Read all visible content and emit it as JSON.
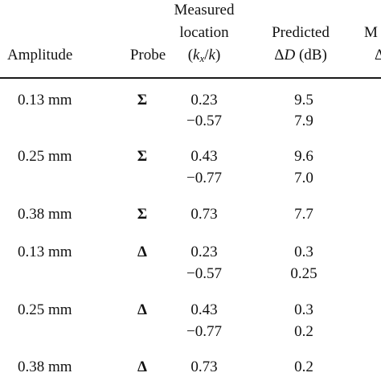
{
  "table": {
    "headers": {
      "amplitude": "Amplitude",
      "probe": "Probe",
      "location_line1": "Measured",
      "location_line2": "location",
      "location_line3": "(kx/k)",
      "predicted_line1": "Predicted",
      "predicted_line2": "ΔD (dB)",
      "measured_partial_line1": "M",
      "measured_partial_line2": "Δ"
    },
    "rows": [
      {
        "amplitude": "0.13 mm",
        "probe": "Σ",
        "location": "0.23",
        "predicted": "9.5"
      },
      {
        "amplitude": "",
        "probe": "",
        "location": "−0.57",
        "predicted": "7.9"
      },
      {
        "amplitude": "0.25 mm",
        "probe": "Σ",
        "location": "0.43",
        "predicted": "9.6"
      },
      {
        "amplitude": "",
        "probe": "",
        "location": "−0.77",
        "predicted": "7.0"
      },
      {
        "amplitude": "0.38 mm",
        "probe": "Σ",
        "location": "0.73",
        "predicted": "7.7"
      },
      {
        "amplitude": "0.13 mm",
        "probe": "Δ",
        "location": "0.23",
        "predicted": "0.3"
      },
      {
        "amplitude": "",
        "probe": "",
        "location": "−0.57",
        "predicted": "0.25"
      },
      {
        "amplitude": "0.25 mm",
        "probe": "Δ",
        "location": "0.43",
        "predicted": "0.3"
      },
      {
        "amplitude": "",
        "probe": "",
        "location": "−0.77",
        "predicted": "0.2"
      },
      {
        "amplitude": "0.38 mm",
        "probe": "Δ",
        "location": "0.73",
        "predicted": "0.2"
      }
    ]
  }
}
